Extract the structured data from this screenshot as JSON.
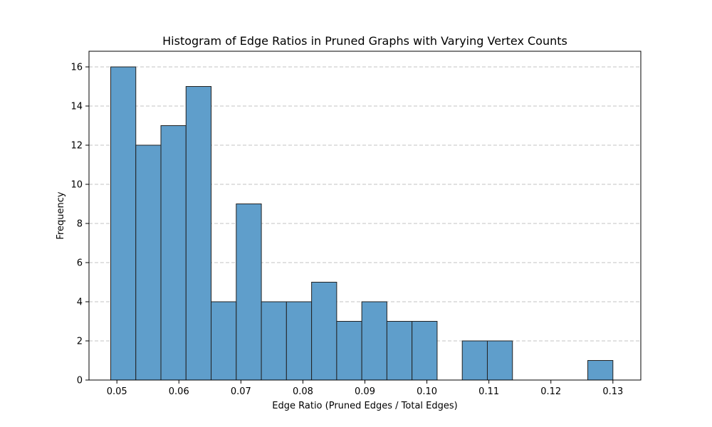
{
  "chart_data": {
    "type": "bar",
    "title": "Histogram of Edge Ratios in Pruned Graphs with Varying Vertex Counts",
    "xlabel": "Edge Ratio (Pruned Edges / Total Edges)",
    "ylabel": "Frequency",
    "bin_start": 0.049,
    "bin_width": 0.00405,
    "values": [
      16,
      12,
      13,
      15,
      4,
      9,
      4,
      4,
      5,
      3,
      4,
      3,
      3,
      0,
      2,
      2,
      0,
      0,
      0,
      1
    ],
    "xlim": [
      0.0455,
      0.1345
    ],
    "ylim": [
      0,
      16.8
    ],
    "x_ticks": [
      0.05,
      0.06,
      0.07,
      0.08,
      0.09,
      0.1,
      0.11,
      0.12,
      0.13
    ],
    "x_tick_labels": [
      "0.05",
      "0.06",
      "0.07",
      "0.08",
      "0.09",
      "0.10",
      "0.11",
      "0.12",
      "0.13"
    ],
    "y_ticks": [
      0,
      2,
      4,
      6,
      8,
      10,
      12,
      14,
      16
    ],
    "y_tick_labels": [
      "0",
      "2",
      "4",
      "6",
      "8",
      "10",
      "12",
      "14",
      "16"
    ],
    "grid": "y-dashed",
    "bar_color": "#5f9ecb",
    "edge_color": "#222222"
  }
}
